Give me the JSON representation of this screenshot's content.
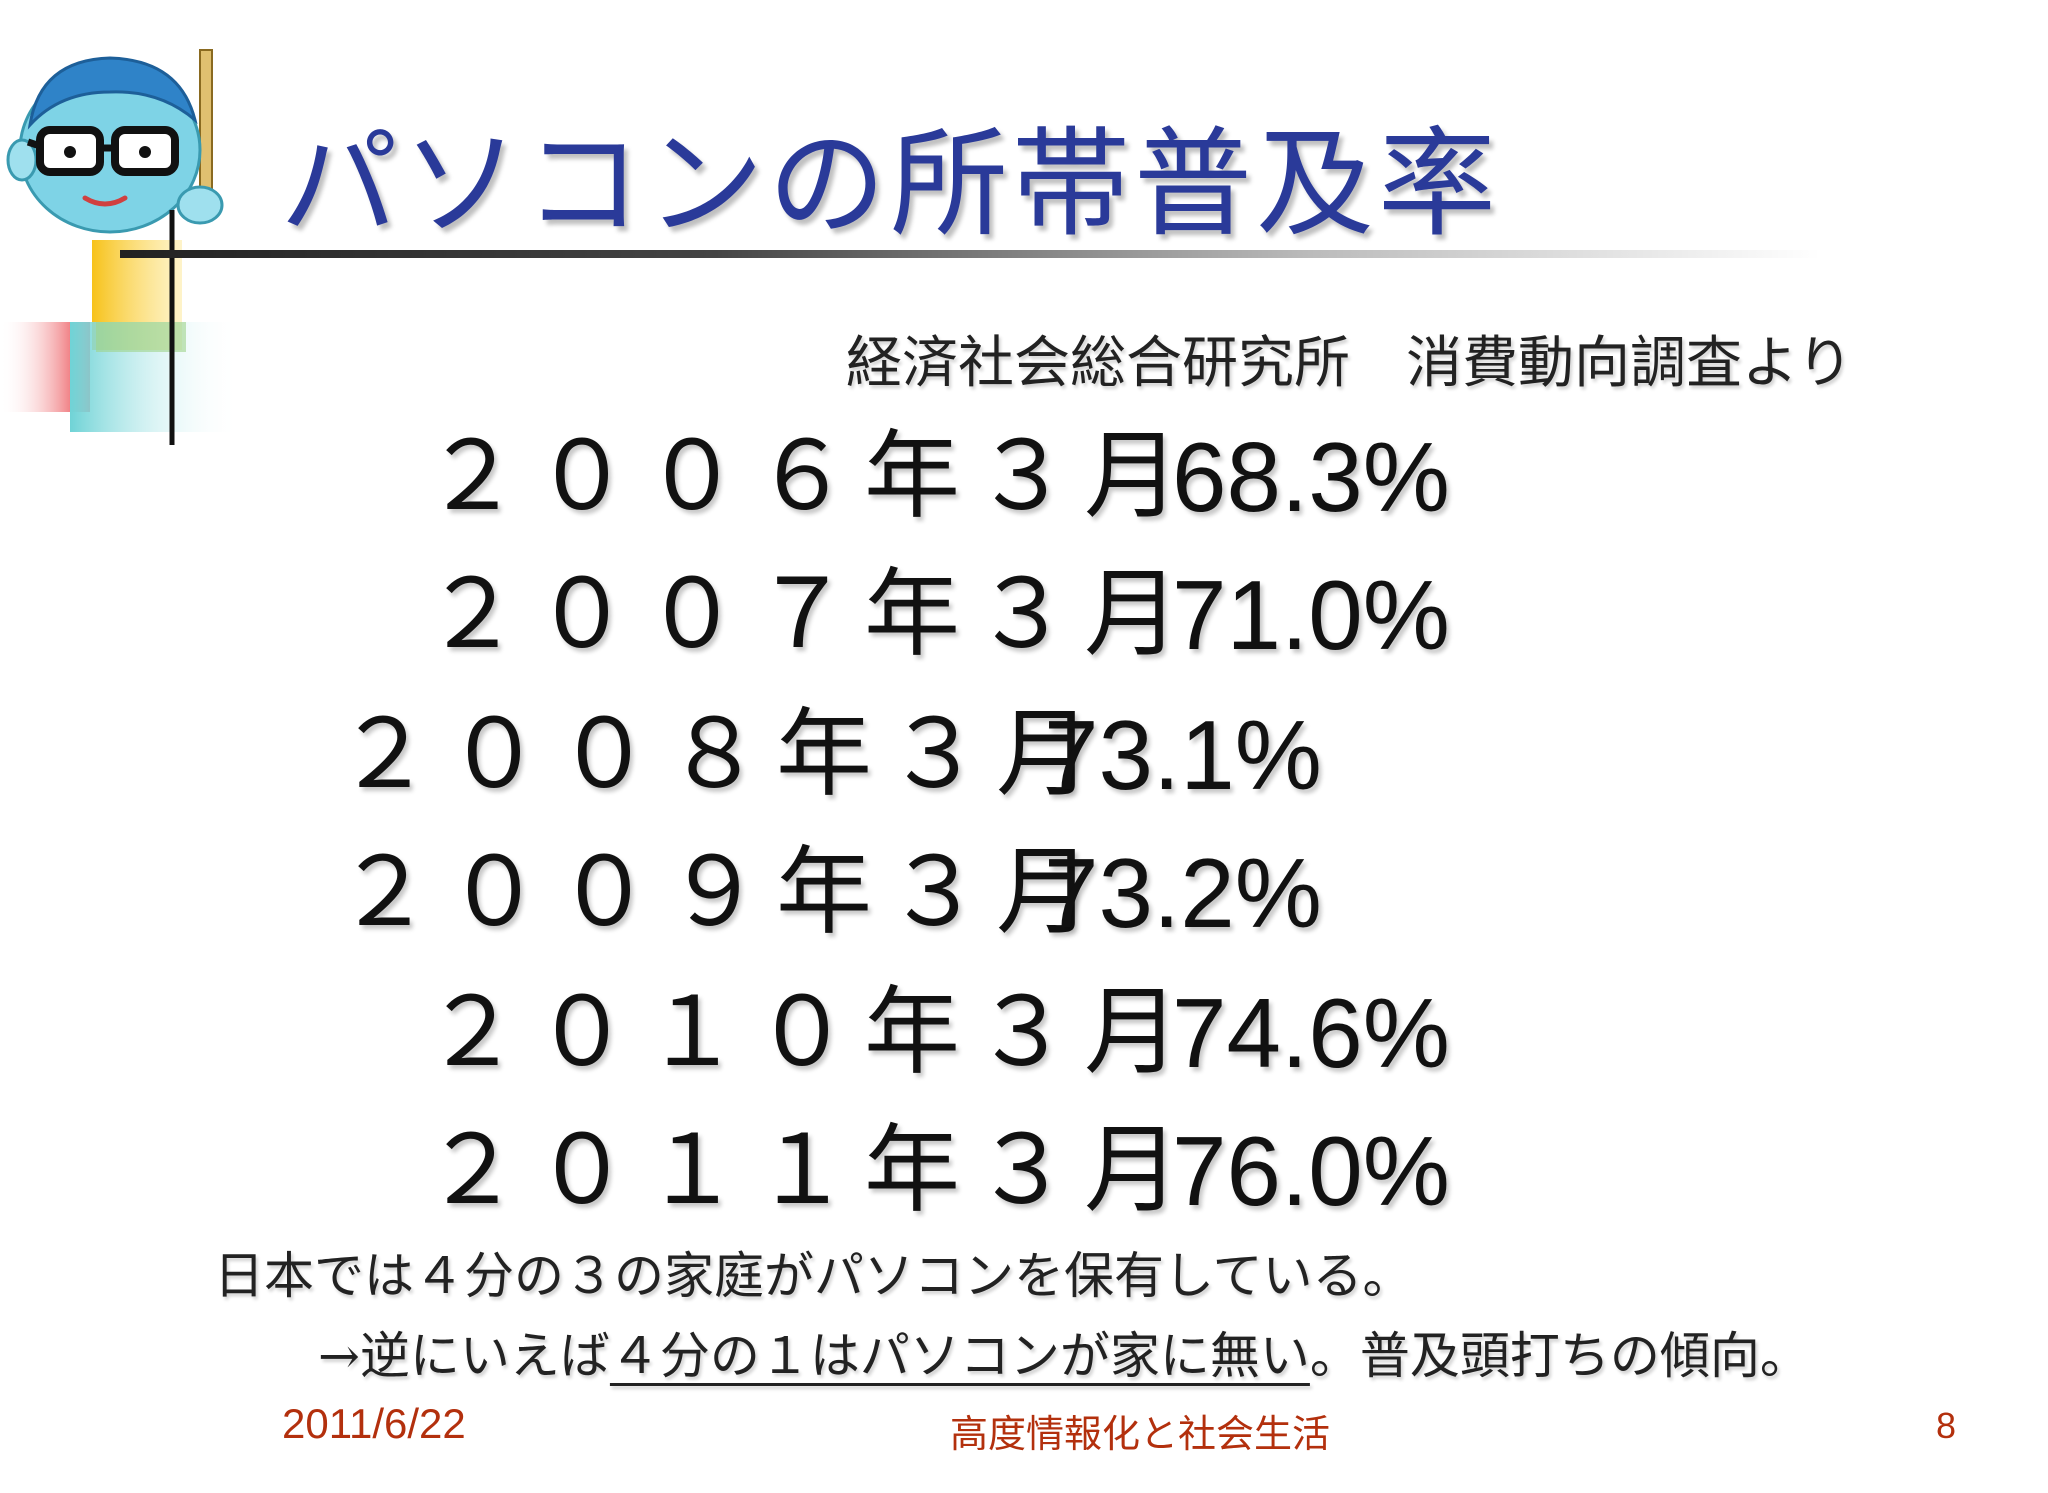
{
  "title": "パソコンの所帯普及率",
  "source": "経済社会総合研究所　消費動向調査より",
  "rows": [
    {
      "period": "２００６年３月",
      "value": "68.3%"
    },
    {
      "period": "２００７年３月",
      "value": "71.0%"
    },
    {
      "period": "２００８年３月",
      "value": "73.1%"
    },
    {
      "period": "２００９年３月",
      "value": "73.2%"
    },
    {
      "period": "２０１０年３月",
      "value": "74.6%"
    },
    {
      "period": "２０１１年３月",
      "value": "76.0%"
    }
  ],
  "notes": {
    "line1": "日本では４分の３の家庭がパソコンを保有している。",
    "line2_prefix": "→逆にいえば",
    "line2_underlined": "４分の１はパソコンが家に無い",
    "line2_suffix": "。普及頭打ちの傾向。"
  },
  "footer": {
    "date": "2011/6/22",
    "center": "高度情報化と社会生活",
    "page": "8"
  },
  "colors": {
    "title": "#2a3a99",
    "footer": "#b3300d"
  },
  "icons": {
    "logo": "teacher-with-glasses-icon"
  }
}
